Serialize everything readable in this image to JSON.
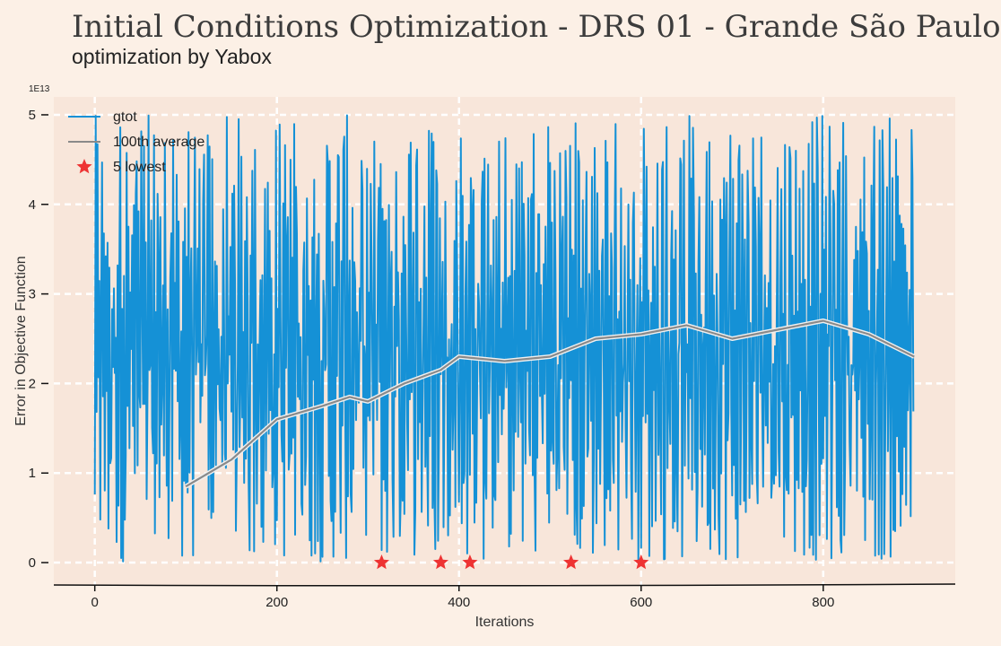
{
  "chart_data": {
    "type": "line",
    "title": "Initial Conditions Optimization - DRS 01 - Grande São Paulo",
    "subtitle": "optimization by Yabox",
    "xlabel": "Iterations",
    "ylabel": "Error in Objective Function",
    "y_exponent_label": "1E13",
    "xlim": [
      -45,
      945
    ],
    "ylim": [
      -0.25,
      5.2
    ],
    "x_ticks": [
      0,
      200,
      400,
      600,
      800
    ],
    "y_ticks": [
      0,
      1,
      2,
      3,
      4,
      5
    ],
    "grid": true,
    "legend_position": "top-left",
    "legend": [
      "gtot",
      "100th average",
      "5 lowest"
    ],
    "colors": {
      "gtot": "#1591d6",
      "average": "#8a8a8a",
      "lowest": "#ee3333",
      "plot_bg": "#f8e6da",
      "page_bg": "#fcf0e6",
      "grid": "#ffffff"
    },
    "series": [
      {
        "name": "gtot",
        "n_points": 900,
        "x_start": 0,
        "y_min": 0.0,
        "y_max": 5.0,
        "shape": "noisy oscillation between ~0 and ~5, heavier toward upper range after iteration 400"
      },
      {
        "name": "100th average",
        "points": [
          [
            100,
            0.85
          ],
          [
            150,
            1.15
          ],
          [
            200,
            1.6
          ],
          [
            250,
            1.75
          ],
          [
            280,
            1.85
          ],
          [
            300,
            1.8
          ],
          [
            340,
            2.0
          ],
          [
            380,
            2.15
          ],
          [
            400,
            2.3
          ],
          [
            450,
            2.25
          ],
          [
            500,
            2.3
          ],
          [
            550,
            2.5
          ],
          [
            600,
            2.55
          ],
          [
            650,
            2.65
          ],
          [
            700,
            2.5
          ],
          [
            750,
            2.6
          ],
          [
            800,
            2.7
          ],
          [
            850,
            2.55
          ],
          [
            900,
            2.3
          ]
        ]
      },
      {
        "name": "5 lowest",
        "points": [
          [
            315,
            0.0
          ],
          [
            380,
            0.0
          ],
          [
            412,
            0.0
          ],
          [
            523,
            0.0
          ],
          [
            600,
            0.0
          ]
        ]
      }
    ]
  }
}
